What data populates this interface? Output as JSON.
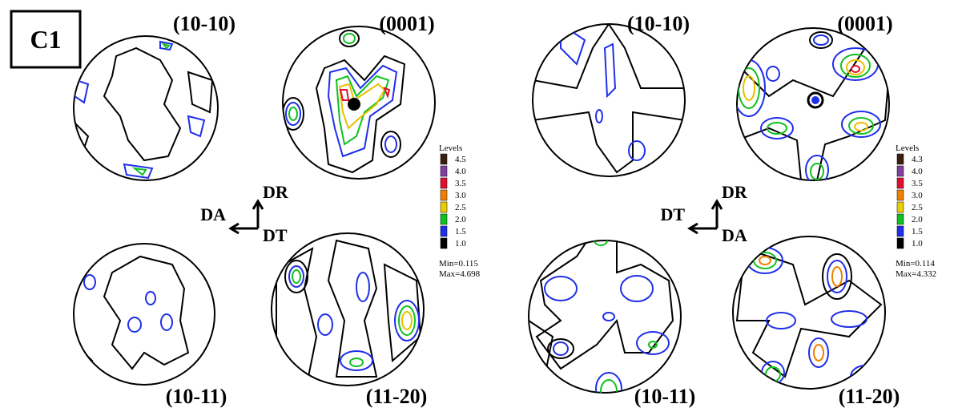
{
  "label": "C1",
  "panels": [
    {
      "pole_figures": [
        "(10-10)",
        "(0001)",
        "(10-11)",
        "(11-20)"
      ],
      "axes": {
        "up": "DR",
        "left": "DA",
        "down": "DT"
      },
      "legend": {
        "title": "Levels",
        "levels": [
          "4.5",
          "4.0",
          "3.5",
          "3.0",
          "2.5",
          "2.0",
          "1.5",
          "1.0"
        ],
        "min": "Min=0.115",
        "max": "Max=4.698"
      }
    },
    {
      "pole_figures": [
        "(10-10)",
        "(0001)",
        "(10-11)",
        "(11-20)"
      ],
      "axes": {
        "up": "DR",
        "left": "DT",
        "down": "DA"
      },
      "legend": {
        "title": "Levels",
        "levels": [
          "4.3",
          "4.0",
          "3.5",
          "3.0",
          "2.5",
          "2.0",
          "1.5",
          "1.0"
        ],
        "min": "Min=0.114",
        "max": "Max=4.332"
      }
    }
  ]
}
